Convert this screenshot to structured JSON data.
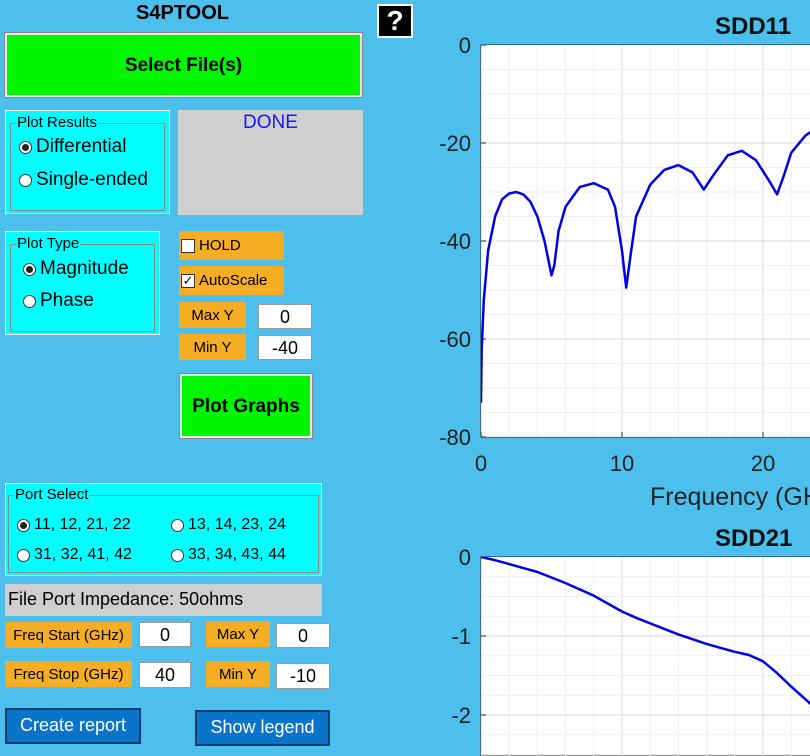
{
  "app": {
    "title": "S4PTOOL",
    "help_icon": "question-icon",
    "help_glyph": "?"
  },
  "controls": {
    "select_files_label": "Select File(s)",
    "status": "DONE",
    "plot_results": {
      "legend": "Plot Results",
      "options": [
        "Differential",
        "Single-ended"
      ],
      "selected": "Differential"
    },
    "plot_type": {
      "legend": "Plot Type",
      "options": [
        "Magnitude",
        "Phase"
      ],
      "selected": "Magnitude"
    },
    "hold": {
      "label": "HOLD",
      "checked": false
    },
    "autoscale": {
      "label": "AutoScale",
      "checked": true
    },
    "max_y": {
      "label": "Max Y",
      "value": "0"
    },
    "min_y": {
      "label": "Min Y",
      "value": "-40"
    },
    "plot_graphs_label": "Plot Graphs",
    "port_select": {
      "legend": "Port Select",
      "options": [
        "11, 12, 21, 22",
        "13, 14, 23, 24",
        "31, 32, 41, 42",
        "33, 34, 43, 44"
      ],
      "selected": "11, 12, 21, 22"
    },
    "impedance": "File Port Impedance: 50ohms",
    "freq_start": {
      "label": "Freq Start (GHz)",
      "value": "0"
    },
    "freq_stop": {
      "label": "Freq Stop (GHz)",
      "value": "40"
    },
    "max_y2": {
      "label": "Max Y",
      "value": "0"
    },
    "min_y2": {
      "label": "Min Y",
      "value": "-10"
    },
    "create_report_label": "Create report",
    "show_legend_label": "Show legend"
  },
  "chart_data": [
    {
      "type": "line",
      "title": "SDD11",
      "xlabel": "Frequency (GHz)",
      "xlim": [
        0,
        40
      ],
      "ylim": [
        -80,
        0
      ],
      "yticks": [
        "0",
        "-20",
        "-40",
        "-60",
        "-80"
      ],
      "xticks": [
        "0",
        "10",
        "20"
      ],
      "grid": true,
      "color": "#0000e6",
      "x": [
        0,
        0.05,
        0.2,
        0.5,
        1,
        1.5,
        2,
        2.5,
        3,
        3.5,
        4,
        4.5,
        5.0,
        5.2,
        5.5,
        6,
        7,
        8,
        9,
        9.5,
        10,
        10.3,
        10.6,
        11,
        12,
        13,
        14,
        15,
        15.8,
        16.5,
        17.5,
        18.5,
        19.5,
        20.5,
        21.0,
        21.5,
        22,
        23,
        23.5
      ],
      "y": [
        -73,
        -62,
        -52,
        -42,
        -35,
        -31.5,
        -30.3,
        -30,
        -30.5,
        -32,
        -35,
        -40,
        -47,
        -45,
        -38,
        -33,
        -29,
        -28.2,
        -29.5,
        -33,
        -42,
        -49.5,
        -43,
        -35,
        -28.5,
        -25.5,
        -24.5,
        -26,
        -29.5,
        -26.5,
        -22.5,
        -21.6,
        -23.5,
        -28,
        -30.5,
        -26.5,
        -22,
        -18.5,
        -17.5
      ]
    },
    {
      "type": "line",
      "title": "SDD21",
      "xlim": [
        0,
        40
      ],
      "ylim": [
        -2.5,
        0
      ],
      "yticks": [
        "0",
        "-1",
        "-2"
      ],
      "grid": true,
      "color": "#0000e6",
      "x": [
        0,
        1,
        2,
        3,
        4,
        5,
        6,
        7,
        8,
        9,
        10,
        11,
        12,
        13,
        14,
        15,
        16,
        17,
        18,
        19,
        20,
        21,
        22,
        23,
        23.5
      ],
      "y": [
        0,
        -0.04,
        -0.09,
        -0.14,
        -0.19,
        -0.26,
        -0.33,
        -0.41,
        -0.49,
        -0.59,
        -0.69,
        -0.77,
        -0.84,
        -0.91,
        -0.98,
        -1.04,
        -1.1,
        -1.15,
        -1.2,
        -1.24,
        -1.32,
        -1.47,
        -1.64,
        -1.8,
        -1.88
      ]
    }
  ]
}
